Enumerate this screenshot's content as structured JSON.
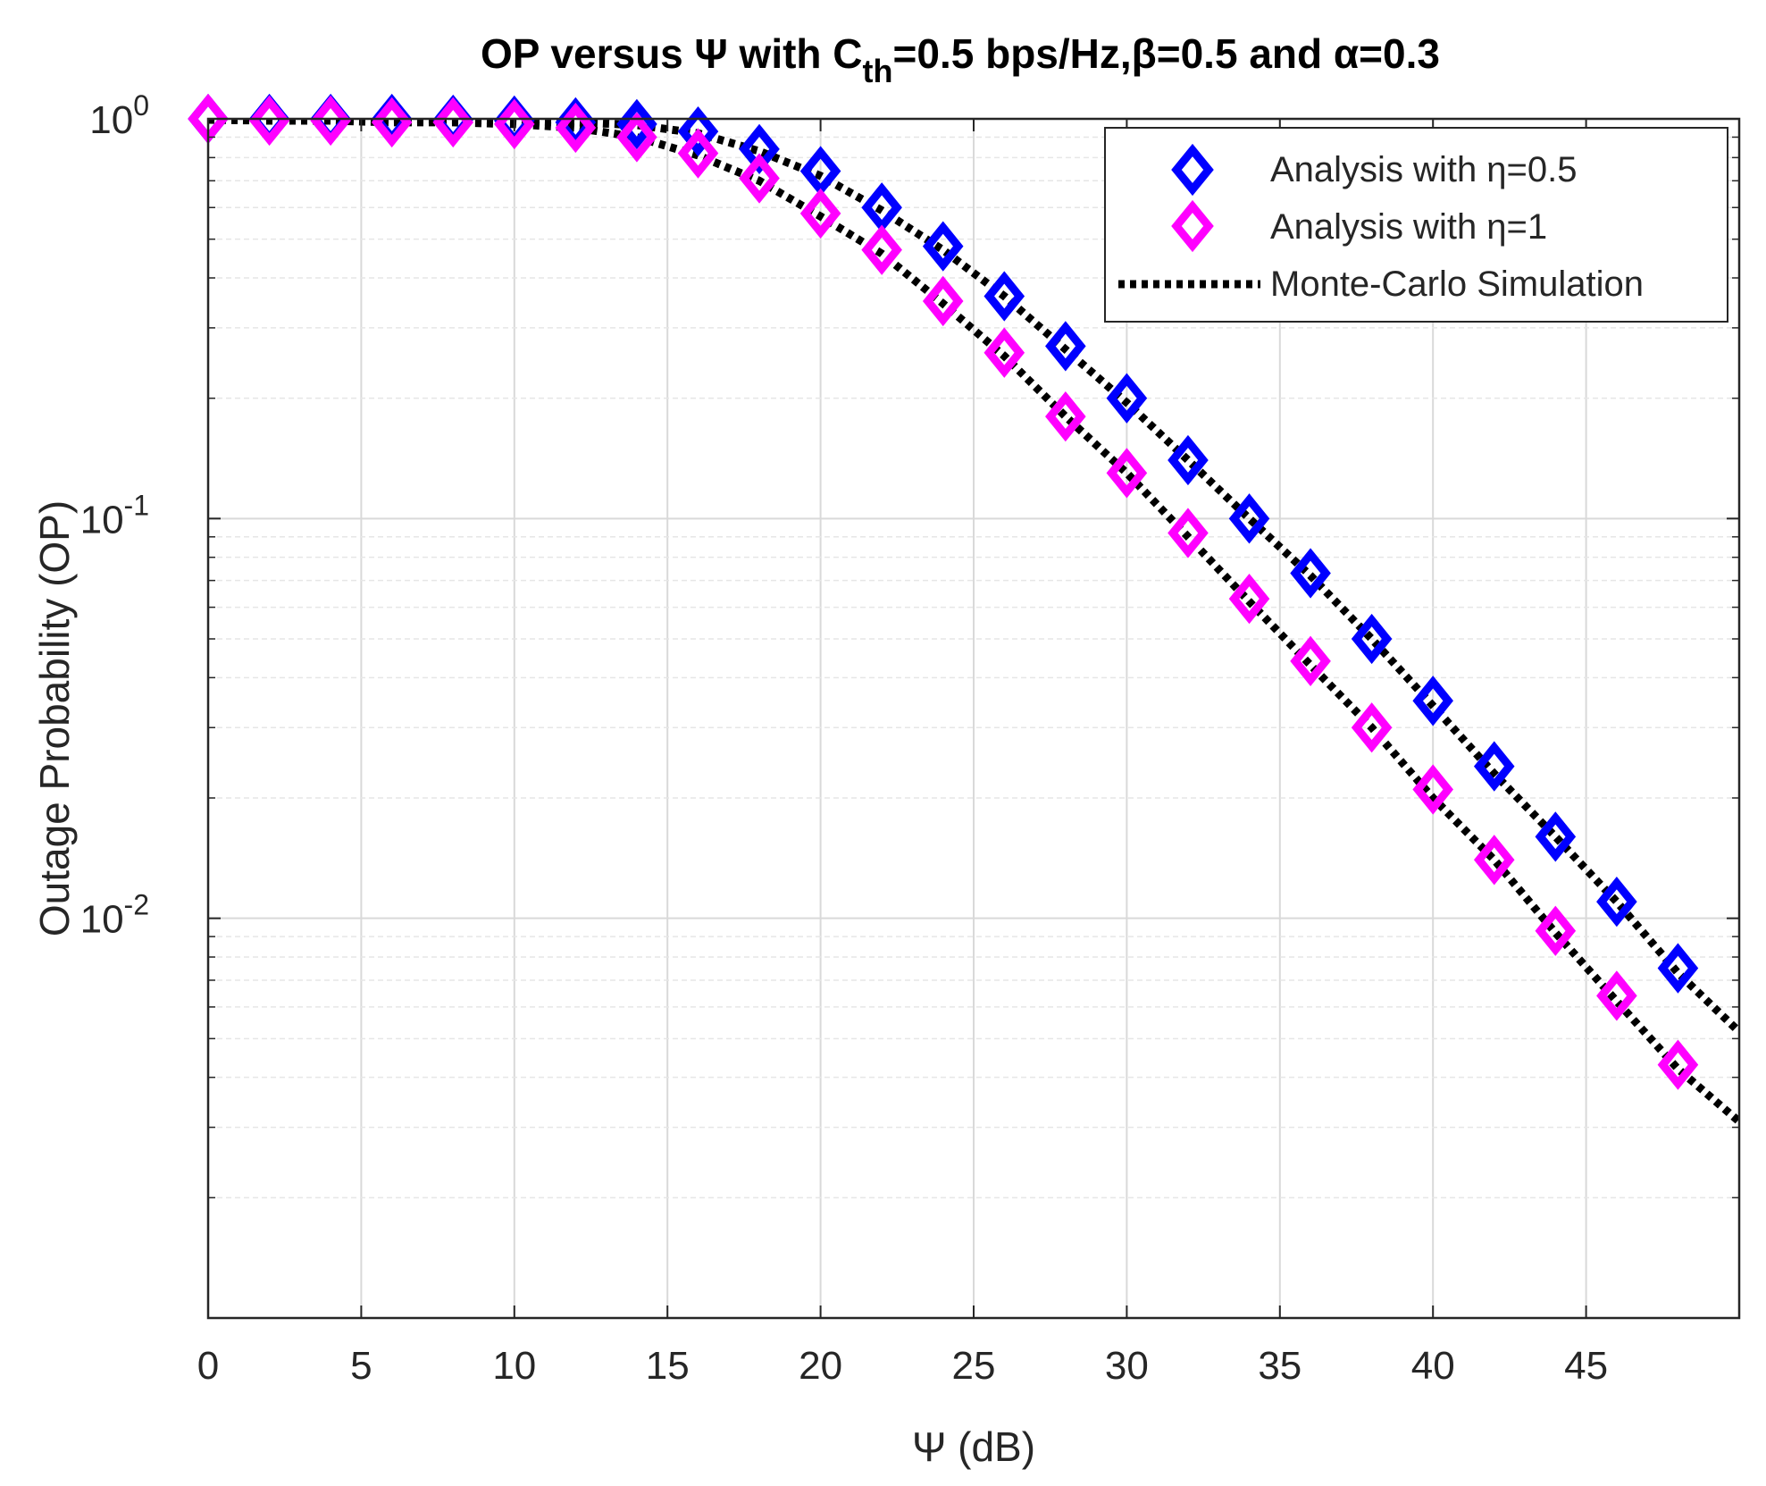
{
  "chart_data": {
    "type": "line",
    "title": "OP versus Ψ with C",
    "title_subscript": "th",
    "title_rest": "=0.5 bps/Hz,β=0.5 and α=0.3",
    "xlabel": "Ψ (dB)",
    "ylabel": "Outage Probability (OP)",
    "xlim": [
      0,
      50
    ],
    "ylim": [
      0.001,
      1
    ],
    "yscale": "log",
    "grid": true,
    "legend_position": "top-right",
    "x_ticks": [
      0,
      5,
      10,
      15,
      20,
      25,
      30,
      35,
      40,
      45
    ],
    "y_ticks": [
      {
        "value": 1,
        "base": "10",
        "exp": "0"
      },
      {
        "value": 0.1,
        "base": "10",
        "exp": "-1"
      },
      {
        "value": 0.01,
        "base": "10",
        "exp": "-2"
      }
    ],
    "legend": [
      {
        "label": "Analysis with η=0.5",
        "series": "analysis_eta_0_5"
      },
      {
        "label": "Analysis with η=1",
        "series": "analysis_eta_1"
      },
      {
        "label": "Monte-Carlo Simulation",
        "series": "simulation"
      }
    ],
    "series": [
      {
        "id": "analysis_eta_0_5",
        "name": "Analysis with η=0.5",
        "style": "marker",
        "marker": "diamond",
        "color": "#0000ff",
        "x": [
          0,
          2,
          4,
          6,
          8,
          10,
          12,
          14,
          16,
          18,
          20,
          22,
          24,
          26,
          28,
          30,
          32,
          34,
          36,
          38,
          40,
          42,
          44,
          46,
          48
        ],
        "values": [
          1.0,
          1.0,
          1.0,
          1.0,
          0.995,
          0.99,
          0.98,
          0.97,
          0.93,
          0.84,
          0.74,
          0.6,
          0.48,
          0.36,
          0.27,
          0.2,
          0.14,
          0.1,
          0.073,
          0.05,
          0.035,
          0.024,
          0.016,
          0.011,
          0.0075
        ]
      },
      {
        "id": "analysis_eta_1",
        "name": "Analysis with η=1",
        "style": "marker",
        "marker": "diamond",
        "color": "#ff00ff",
        "x": [
          0,
          2,
          4,
          6,
          8,
          10,
          12,
          14,
          16,
          18,
          20,
          22,
          24,
          26,
          28,
          30,
          32,
          34,
          36,
          38,
          40,
          42,
          44,
          46,
          48
        ],
        "values": [
          1.0,
          0.99,
          0.99,
          0.98,
          0.98,
          0.97,
          0.95,
          0.9,
          0.82,
          0.71,
          0.58,
          0.47,
          0.35,
          0.26,
          0.18,
          0.13,
          0.092,
          0.063,
          0.044,
          0.03,
          0.021,
          0.014,
          0.0093,
          0.0064,
          0.0043
        ]
      },
      {
        "id": "simulation",
        "name": "Monte-Carlo Simulation",
        "style": "dotted-line",
        "color": "#000000",
        "curves": [
          {
            "x": [
              0,
              2,
              4,
              6,
              8,
              10,
              12,
              14,
              16,
              18,
              20,
              22,
              24,
              26,
              28,
              30,
              32,
              34,
              36,
              38,
              40,
              42,
              44,
              46,
              48,
              50
            ],
            "values": [
              1.0,
              1.0,
              1.0,
              1.0,
              0.995,
              0.99,
              0.98,
              0.965,
              0.92,
              0.83,
              0.72,
              0.59,
              0.47,
              0.36,
              0.265,
              0.195,
              0.14,
              0.1,
              0.072,
              0.05,
              0.034,
              0.023,
              0.016,
              0.011,
              0.0073,
              0.0052
            ]
          },
          {
            "x": [
              0,
              2,
              4,
              6,
              8,
              10,
              12,
              14,
              16,
              18,
              20,
              22,
              24,
              26,
              28,
              30,
              32,
              34,
              36,
              38,
              40,
              42,
              44,
              46,
              48,
              50
            ],
            "values": [
              0.995,
              0.99,
              0.99,
              0.98,
              0.98,
              0.97,
              0.95,
              0.9,
              0.81,
              0.7,
              0.57,
              0.46,
              0.345,
              0.255,
              0.18,
              0.13,
              0.09,
              0.062,
              0.043,
              0.03,
              0.02,
              0.014,
              0.0092,
              0.0062,
              0.0042,
              0.0031
            ]
          }
        ]
      }
    ]
  }
}
